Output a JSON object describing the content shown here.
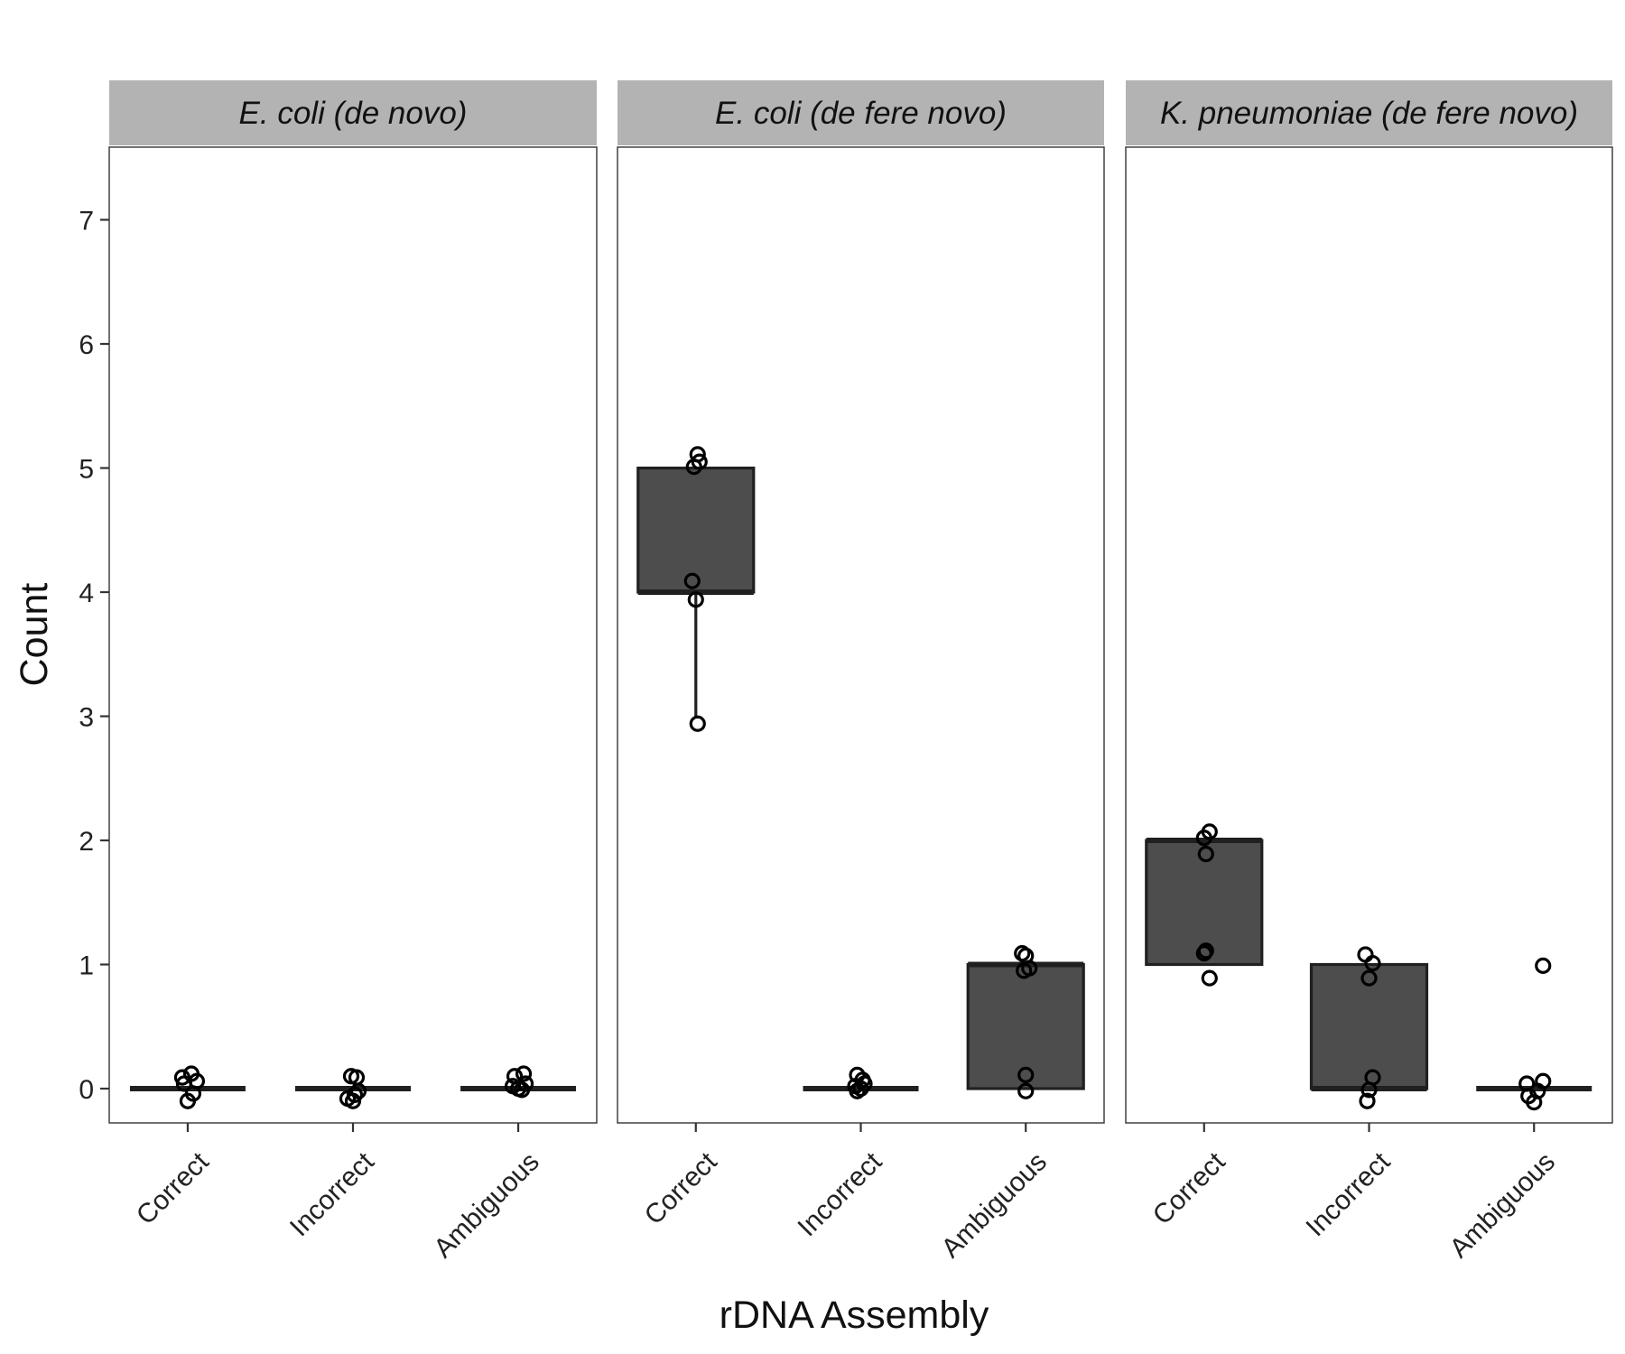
{
  "chart_data": {
    "type": "box",
    "xlabel": "rDNA Assembly",
    "ylabel": "Count",
    "ylim": [
      -0.28,
      7.57
    ],
    "yticks": [
      0,
      1,
      2,
      3,
      4,
      5,
      6,
      7
    ],
    "categories": [
      "Correct",
      "Incorrect",
      "Ambiguous"
    ],
    "grid": false,
    "panels": [
      {
        "title": "E. coli (de novo)",
        "boxes": [
          {
            "category": "Correct",
            "q1": 0,
            "median": 0,
            "q3": 0,
            "whisker_low": 0,
            "whisker_high": 0,
            "points": [
              {
                "x": 0.02,
                "y": 0.12
              },
              {
                "x": -0.03,
                "y": 0.09
              },
              {
                "x": 0.05,
                "y": 0.06
              },
              {
                "x": -0.02,
                "y": 0.04
              },
              {
                "x": 0.03,
                "y": -0.04
              },
              {
                "x": 0.0,
                "y": -0.1
              }
            ]
          },
          {
            "category": "Incorrect",
            "q1": 0,
            "median": 0,
            "q3": 0,
            "whisker_low": 0,
            "whisker_high": 0,
            "points": [
              {
                "x": -0.01,
                "y": 0.1
              },
              {
                "x": 0.02,
                "y": 0.09
              },
              {
                "x": 0.03,
                "y": -0.02
              },
              {
                "x": 0.01,
                "y": -0.05
              },
              {
                "x": -0.03,
                "y": -0.08
              },
              {
                "x": 0.0,
                "y": -0.1
              }
            ]
          },
          {
            "category": "Ambiguous",
            "q1": 0,
            "median": 0,
            "q3": 0,
            "whisker_low": 0,
            "whisker_high": 0,
            "points": [
              {
                "x": 0.03,
                "y": 0.12
              },
              {
                "x": -0.02,
                "y": 0.1
              },
              {
                "x": 0.04,
                "y": 0.04
              },
              {
                "x": -0.03,
                "y": 0.02
              },
              {
                "x": 0.0,
                "y": 0.0
              },
              {
                "x": 0.02,
                "y": -0.01
              }
            ]
          }
        ]
      },
      {
        "title": "E. coli (de fere novo)",
        "boxes": [
          {
            "category": "Correct",
            "q1": 4,
            "median": 4,
            "q3": 5,
            "whisker_low": 3,
            "whisker_high": 5,
            "points": [
              {
                "x": 0.01,
                "y": 5.11
              },
              {
                "x": 0.02,
                "y": 5.05
              },
              {
                "x": -0.01,
                "y": 5.01
              },
              {
                "x": -0.02,
                "y": 4.09
              },
              {
                "x": 0.0,
                "y": 3.94
              },
              {
                "x": 0.01,
                "y": 2.94
              }
            ]
          },
          {
            "category": "Incorrect",
            "q1": 0,
            "median": 0,
            "q3": 0,
            "whisker_low": 0,
            "whisker_high": 0,
            "points": [
              {
                "x": -0.02,
                "y": 0.11
              },
              {
                "x": 0.01,
                "y": 0.07
              },
              {
                "x": 0.02,
                "y": 0.04
              },
              {
                "x": -0.03,
                "y": 0.02
              },
              {
                "x": 0.0,
                "y": 0.0
              },
              {
                "x": -0.02,
                "y": -0.02
              }
            ]
          },
          {
            "category": "Ambiguous",
            "q1": 0,
            "median": 1,
            "q3": 1,
            "whisker_low": 0,
            "whisker_high": 1,
            "points": [
              {
                "x": -0.02,
                "y": 1.09
              },
              {
                "x": 0.0,
                "y": 1.07
              },
              {
                "x": 0.02,
                "y": 0.97
              },
              {
                "x": -0.01,
                "y": 0.95
              },
              {
                "x": 0.0,
                "y": 0.11
              },
              {
                "x": 0.0,
                "y": -0.02
              }
            ]
          }
        ]
      },
      {
        "title": "K. pneumoniae (de fere novo)",
        "boxes": [
          {
            "category": "Correct",
            "q1": 1,
            "median": 2,
            "q3": 2,
            "whisker_low": 1,
            "whisker_high": 2,
            "points": [
              {
                "x": 0.03,
                "y": 2.07
              },
              {
                "x": 0.0,
                "y": 2.02
              },
              {
                "x": 0.01,
                "y": 1.89
              },
              {
                "x": 0.01,
                "y": 1.11
              },
              {
                "x": 0.0,
                "y": 1.09
              },
              {
                "x": 0.03,
                "y": 0.89
              }
            ]
          },
          {
            "category": "Incorrect",
            "q1": 0,
            "median": 0,
            "q3": 1,
            "whisker_low": 0,
            "whisker_high": 1,
            "points": [
              {
                "x": -0.02,
                "y": 1.08
              },
              {
                "x": 0.02,
                "y": 1.01
              },
              {
                "x": 0.0,
                "y": 0.89
              },
              {
                "x": 0.02,
                "y": 0.09
              },
              {
                "x": 0.0,
                "y": -0.01
              },
              {
                "x": -0.01,
                "y": -0.1
              }
            ]
          },
          {
            "category": "Ambiguous",
            "q1": 0,
            "median": 0,
            "q3": 0,
            "whisker_low": 0,
            "whisker_high": 0,
            "points": [
              {
                "x": 0.05,
                "y": 0.99
              },
              {
                "x": 0.05,
                "y": 0.06
              },
              {
                "x": -0.04,
                "y": 0.04
              },
              {
                "x": 0.02,
                "y": -0.02
              },
              {
                "x": -0.03,
                "y": -0.06
              },
              {
                "x": 0.0,
                "y": -0.11
              }
            ]
          }
        ]
      }
    ]
  }
}
